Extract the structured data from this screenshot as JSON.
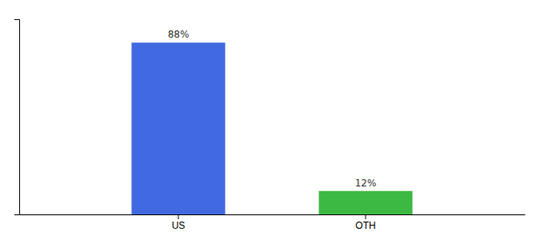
{
  "chart_data": {
    "type": "bar",
    "categories": [
      "US",
      "OTH"
    ],
    "values": [
      88,
      12
    ],
    "value_labels": [
      "88%",
      "12%"
    ],
    "colors": [
      "#4169e1",
      "#3cb943"
    ],
    "ylim": [
      0,
      100
    ],
    "yticks": [],
    "grid": false,
    "data_labels": true,
    "tick_labels": "x"
  }
}
